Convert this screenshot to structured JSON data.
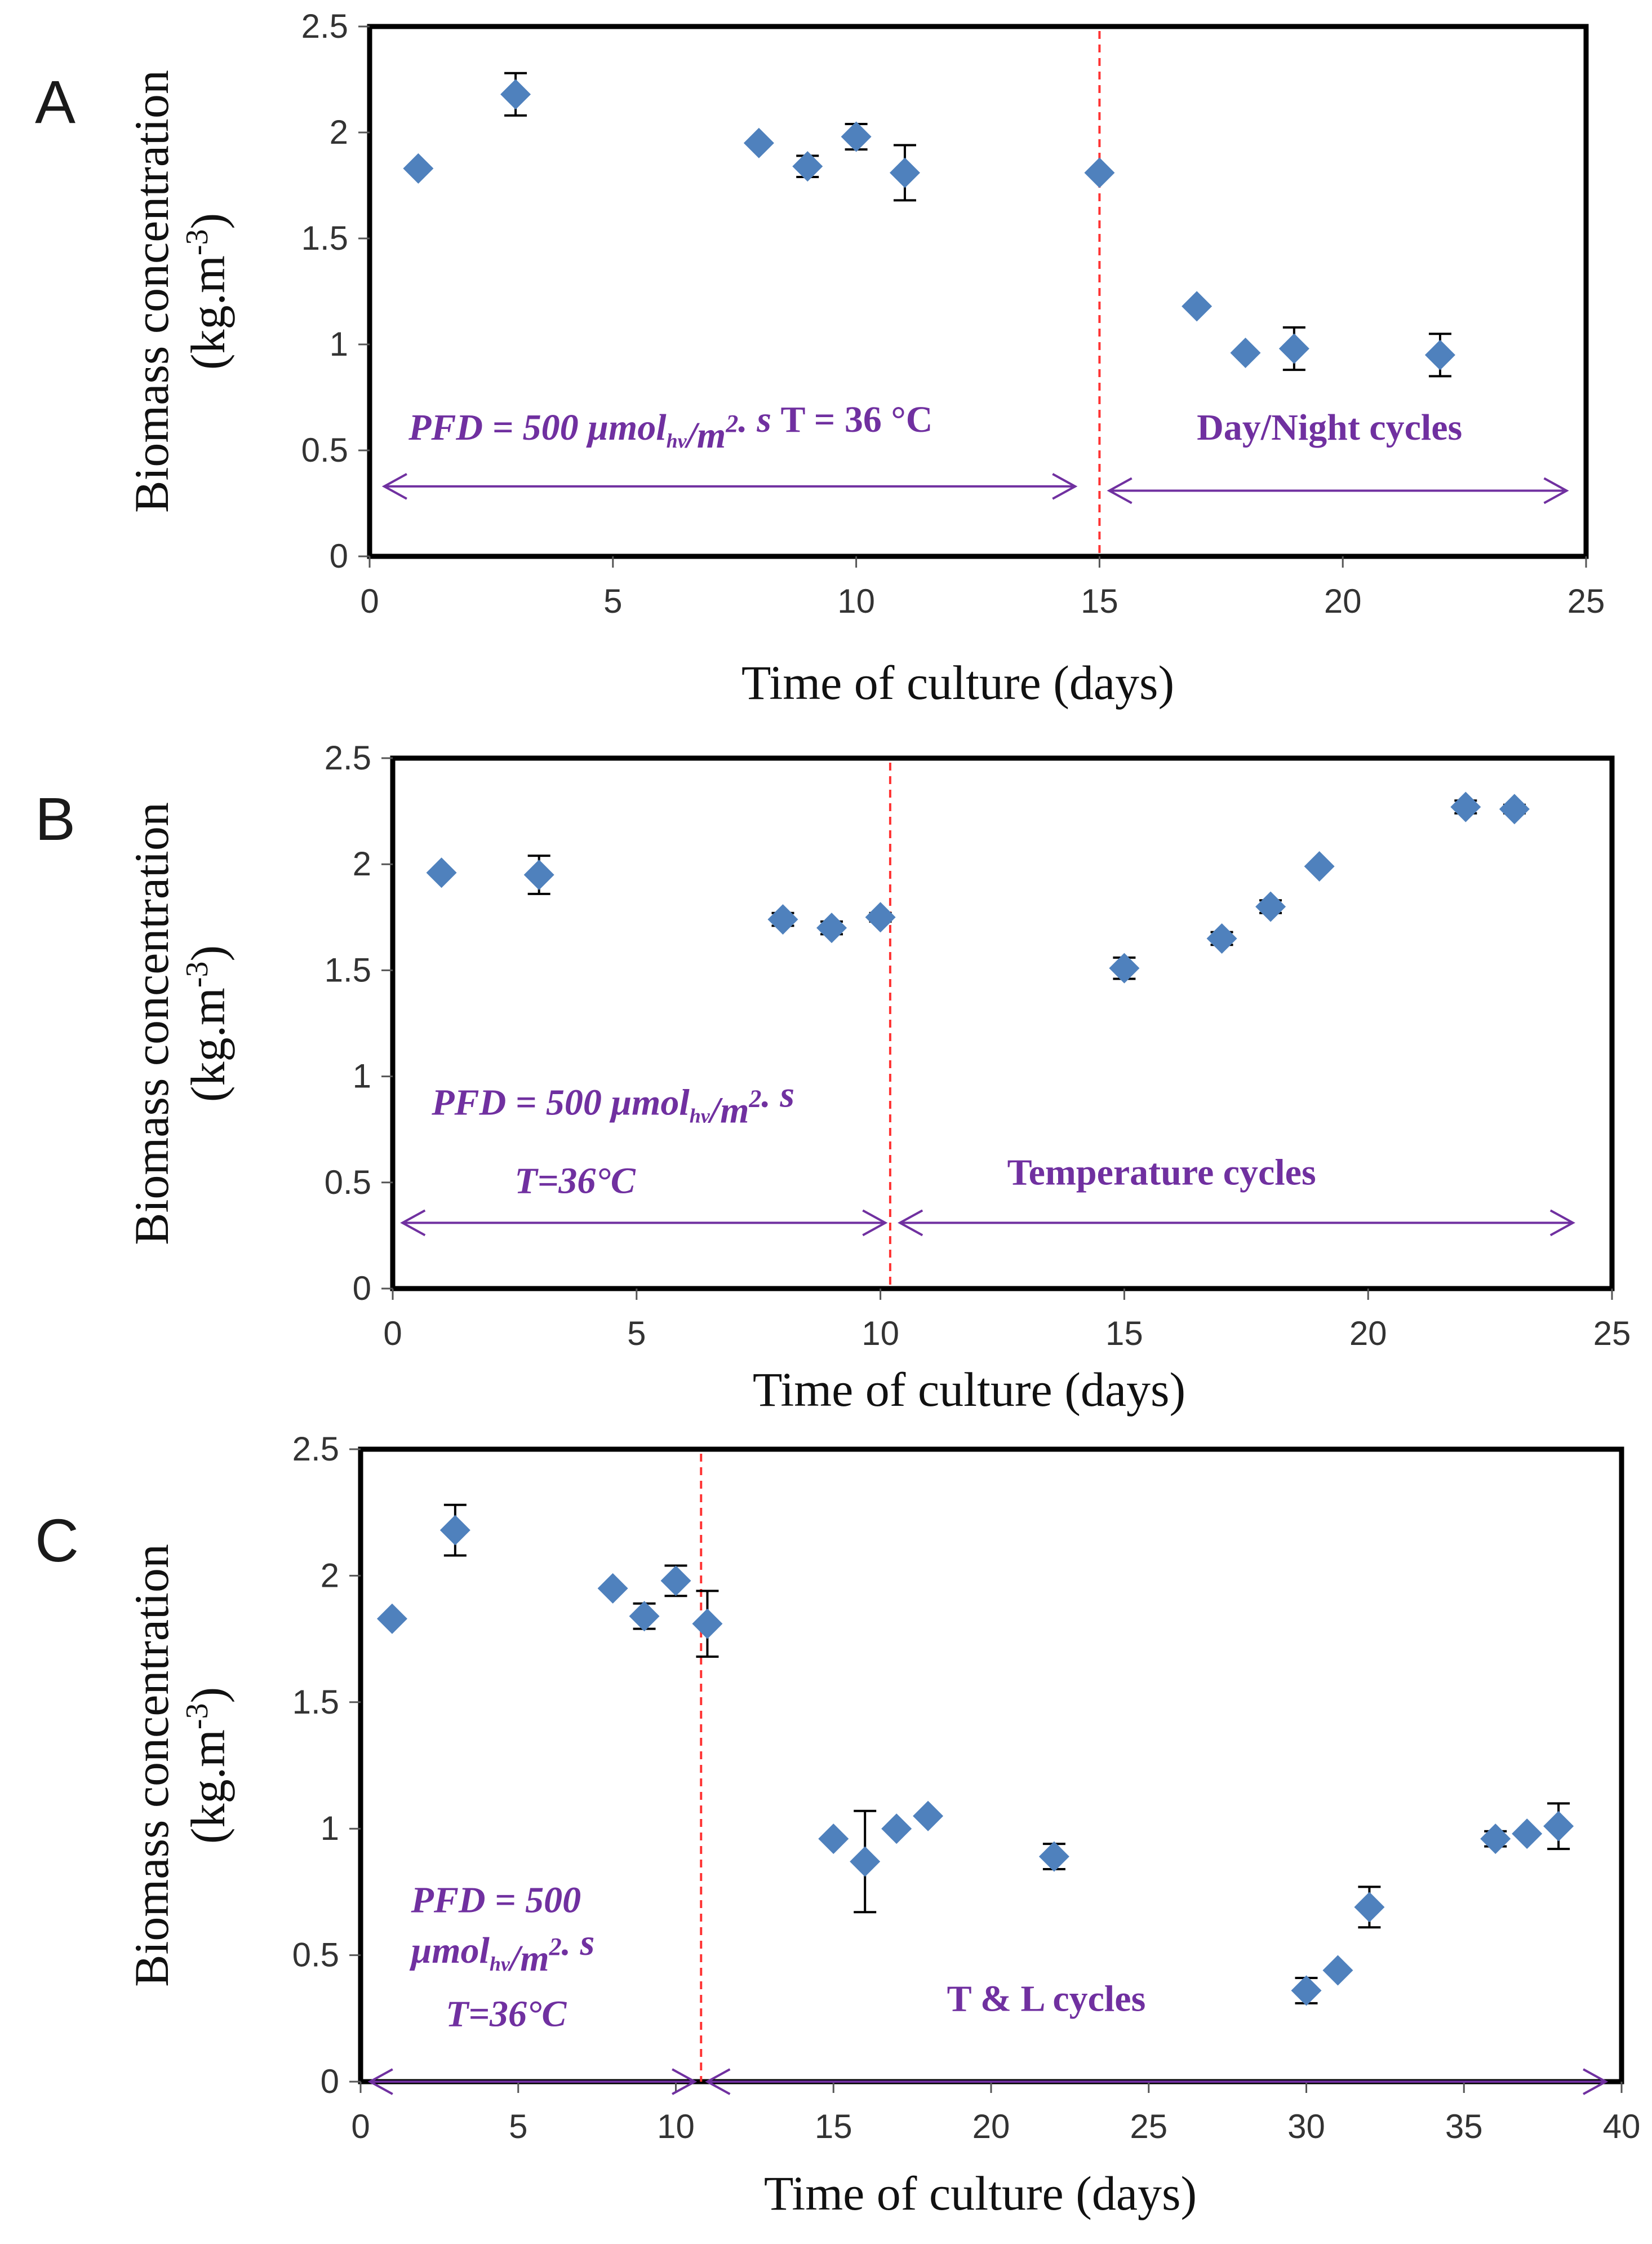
{
  "colors": {
    "marker": "#4f81bd",
    "divider": "#ff3333",
    "annotation": "#7030a0",
    "frame": "#000000",
    "errorbar": "#000000"
  },
  "chart_data": [
    {
      "type": "scatter",
      "panel": "A",
      "title": "",
      "xlabel": "Time of culture (days)",
      "ylabel_main": "Biomass concentration",
      "ylabel_unit": "(kg.m-3)",
      "xlim": [
        0,
        25
      ],
      "ylim": [
        0,
        2.5
      ],
      "xticks": [
        0,
        5,
        10,
        15,
        20,
        25
      ],
      "yticks": [
        0,
        0.5,
        1,
        1.5,
        2,
        2.5
      ],
      "ytick_labels": [
        "0",
        "0.5",
        "1",
        "1.5",
        "2",
        "2.5"
      ],
      "grid": false,
      "legend": "none",
      "divider_x": 15,
      "points": [
        {
          "x": 1,
          "y": 1.83,
          "err": 0
        },
        {
          "x": 3,
          "y": 2.18,
          "err": 0.1
        },
        {
          "x": 8,
          "y": 1.95,
          "err": 0
        },
        {
          "x": 9,
          "y": 1.84,
          "err": 0.05
        },
        {
          "x": 10,
          "y": 1.98,
          "err": 0.06
        },
        {
          "x": 11,
          "y": 1.81,
          "err": 0.13
        },
        {
          "x": 15,
          "y": 1.81,
          "err": 0
        },
        {
          "x": 17,
          "y": 1.18,
          "err": 0
        },
        {
          "x": 18,
          "y": 0.96,
          "err": 0
        },
        {
          "x": 19,
          "y": 0.98,
          "err": 0.1
        },
        {
          "x": 22,
          "y": 0.95,
          "err": 0.1
        }
      ],
      "arrows": [
        {
          "x0": 0.3,
          "x1": 14.5,
          "y": 0.33
        },
        {
          "x0": 15.2,
          "x1": 24.6,
          "y": 0.31
        }
      ],
      "annotations": [
        {
          "parts": [
            {
              "text": "PFD = 500 μmol",
              "italic": true
            },
            {
              "text": "hv",
              "italic": true,
              "sub": true
            },
            {
              "text": "/m",
              "italic": true
            },
            {
              "text": "2",
              "italic": true,
              "sup": true
            },
            {
              "text": ". s  ",
              "italic": true
            },
            {
              "text": "T = 36 °C",
              "italic": false
            }
          ],
          "x": 0.8,
          "y": 0.55
        },
        {
          "parts": [
            {
              "text": "Day/Night cycles",
              "italic": false
            }
          ],
          "x": 17,
          "y": 0.55
        }
      ]
    },
    {
      "type": "scatter",
      "panel": "B",
      "title": "",
      "xlabel": "Time of culture (days)",
      "ylabel_main": "Biomass concentration",
      "ylabel_unit": "(kg.m-3)",
      "xlim": [
        0,
        25
      ],
      "ylim": [
        0,
        2.5
      ],
      "xticks": [
        0,
        5,
        10,
        15,
        20,
        25
      ],
      "yticks": [
        0,
        0.5,
        1,
        1.5,
        2,
        2.5
      ],
      "ytick_labels": [
        "0",
        "0.5",
        "1",
        "1.5",
        "2",
        "2.5"
      ],
      "grid": false,
      "legend": "none",
      "divider_x": 10.2,
      "points": [
        {
          "x": 1,
          "y": 1.96,
          "err": 0
        },
        {
          "x": 3,
          "y": 1.95,
          "err": 0.09
        },
        {
          "x": 8,
          "y": 1.74,
          "err": 0.03
        },
        {
          "x": 9,
          "y": 1.7,
          "err": 0.03
        },
        {
          "x": 10,
          "y": 1.75,
          "err": 0.02
        },
        {
          "x": 15,
          "y": 1.51,
          "err": 0.05
        },
        {
          "x": 17,
          "y": 1.65,
          "err": 0.03
        },
        {
          "x": 18,
          "y": 1.8,
          "err": 0.03
        },
        {
          "x": 19,
          "y": 1.99,
          "err": 0
        },
        {
          "x": 22,
          "y": 2.27,
          "err": 0.03
        },
        {
          "x": 23,
          "y": 2.26,
          "err": 0.02
        }
      ],
      "arrows": [
        {
          "x0": 0.2,
          "x1": 10.1,
          "y": 0.31
        },
        {
          "x0": 10.4,
          "x1": 24.2,
          "y": 0.31
        }
      ],
      "annotations": [
        {
          "parts": [
            {
              "text": "PFD = 500 μmol",
              "italic": true
            },
            {
              "text": "hv",
              "italic": true,
              "sub": true
            },
            {
              "text": "/m",
              "italic": true
            },
            {
              "text": "2",
              "italic": true,
              "sup": true
            },
            {
              "text": ". s",
              "italic": true
            }
          ],
          "x": 0.8,
          "y": 0.82
        },
        {
          "parts": [
            {
              "text": "T=36°C",
              "italic": true
            }
          ],
          "x": 2.5,
          "y": 0.45
        },
        {
          "parts": [
            {
              "text": "Temperature cycles",
              "italic": false
            }
          ],
          "x": 12.6,
          "y": 0.49
        }
      ]
    },
    {
      "type": "scatter",
      "panel": "C",
      "title": "",
      "xlabel": "Time of culture (days)",
      "ylabel_main": "Biomass concentration",
      "ylabel_unit": "(kg.m-3)",
      "xlim": [
        0,
        40
      ],
      "ylim": [
        0,
        2.5
      ],
      "xticks": [
        0,
        5,
        10,
        15,
        20,
        25,
        30,
        35,
        40
      ],
      "yticks": [
        0,
        0.5,
        1,
        1.5,
        2,
        2.5
      ],
      "ytick_labels": [
        "0",
        "0.5",
        "1",
        "1.5",
        "2",
        "2.5"
      ],
      "grid": false,
      "legend": "none",
      "divider_x": 10.8,
      "points": [
        {
          "x": 1,
          "y": 1.83,
          "err": 0
        },
        {
          "x": 3,
          "y": 2.18,
          "err": 0.1
        },
        {
          "x": 8,
          "y": 1.95,
          "err": 0
        },
        {
          "x": 9,
          "y": 1.84,
          "err": 0.05
        },
        {
          "x": 10,
          "y": 1.98,
          "err": 0.06
        },
        {
          "x": 11,
          "y": 1.81,
          "err": 0.13
        },
        {
          "x": 15,
          "y": 0.96,
          "err": 0
        },
        {
          "x": 16,
          "y": 0.87,
          "err": 0.2
        },
        {
          "x": 17,
          "y": 1.0,
          "err": 0
        },
        {
          "x": 18,
          "y": 1.05,
          "err": 0
        },
        {
          "x": 22,
          "y": 0.89,
          "err": 0.05
        },
        {
          "x": 30,
          "y": 0.36,
          "err": 0.05
        },
        {
          "x": 31,
          "y": 0.44,
          "err": 0
        },
        {
          "x": 32,
          "y": 0.69,
          "err": 0.08
        },
        {
          "x": 36,
          "y": 0.96,
          "err": 0.03
        },
        {
          "x": 37,
          "y": 0.98,
          "err": 0
        },
        {
          "x": 38,
          "y": 1.01,
          "err": 0.09
        }
      ],
      "arrows": [
        {
          "x0": 0.3,
          "x1": 10.6,
          "y": 0
        },
        {
          "x0": 11.0,
          "x1": 39.5,
          "y": 0
        }
      ],
      "annotations": [
        {
          "parts": [
            {
              "text": "PFD = 500",
              "italic": true
            }
          ],
          "x": 1.6,
          "y": 0.67
        },
        {
          "parts": [
            {
              "text": "μmol",
              "italic": true
            },
            {
              "text": "hv",
              "italic": true,
              "sub": true
            },
            {
              "text": "/m",
              "italic": true
            },
            {
              "text": "2",
              "italic": true,
              "sup": true
            },
            {
              "text": ". s",
              "italic": true
            }
          ],
          "x": 1.6,
          "y": 0.47
        },
        {
          "parts": [
            {
              "text": "T=36°C",
              "italic": true
            }
          ],
          "x": 2.7,
          "y": 0.22
        },
        {
          "parts": [
            {
              "text": "T & L cycles",
              "italic": false
            }
          ],
          "x": 18.6,
          "y": 0.28
        }
      ]
    }
  ]
}
